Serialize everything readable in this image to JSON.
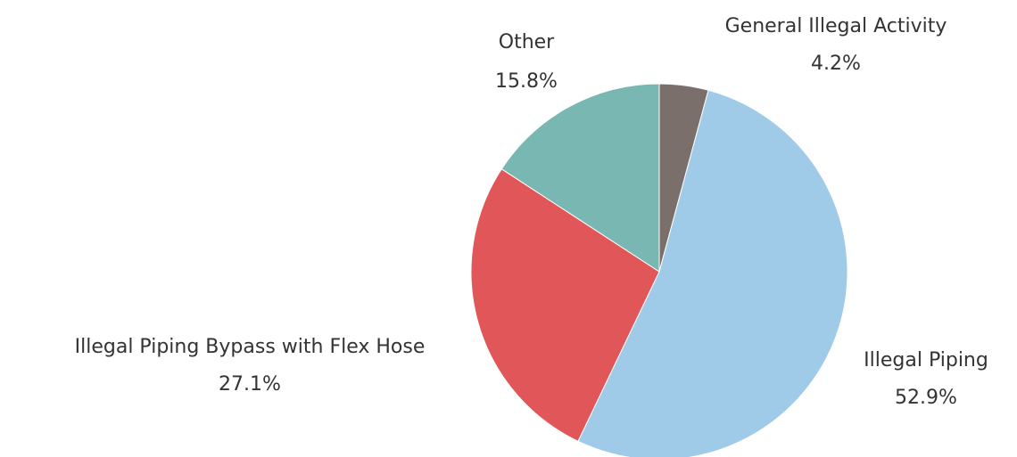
{
  "chart_data": {
    "type": "pie",
    "categories": [
      "General Illegal Activity",
      "Illegal Piping",
      "Illegal Piping Bypass with Flex Hose",
      "Other"
    ],
    "values": [
      4.2,
      52.9,
      27.1,
      15.8
    ],
    "value_labels": [
      "4.2%",
      "52.9%",
      "27.1%",
      "15.8%"
    ],
    "colors": [
      "#7b6f6b",
      "#a0cbe8",
      "#e15759",
      "#79b7b2"
    ]
  }
}
